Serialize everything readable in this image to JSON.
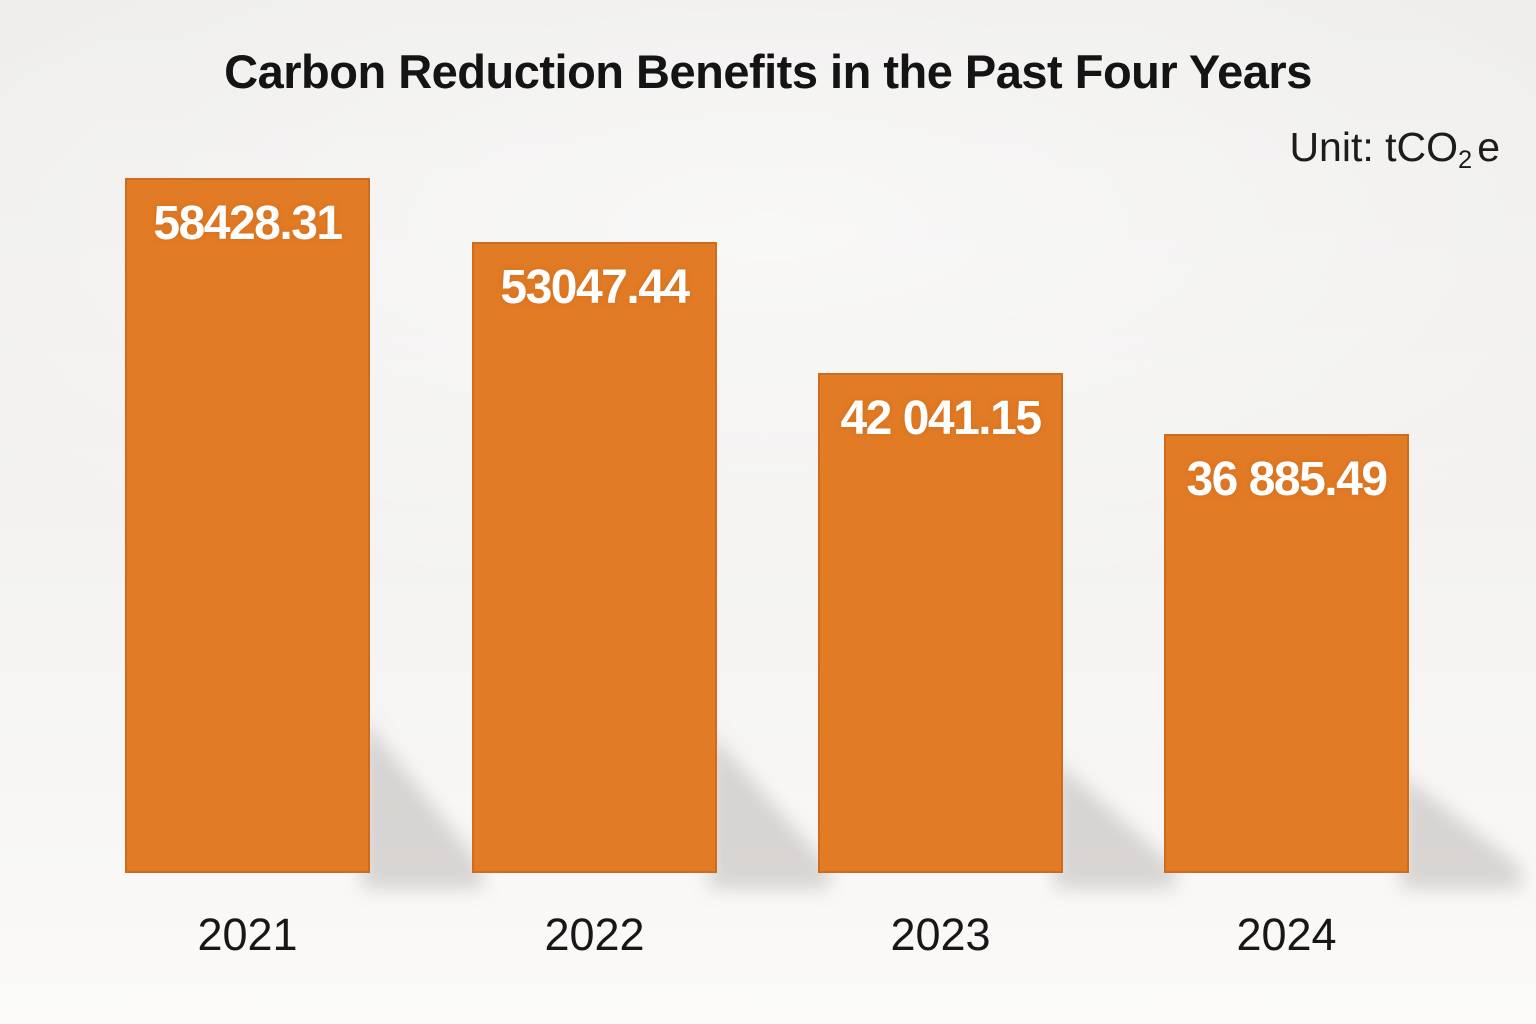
{
  "chart": {
    "title": "Carbon Reduction Benefits in the Past Four Years",
    "unit_prefix": "Unit: tCO",
    "unit_sub": "2",
    "unit_suffix": "e"
  },
  "chart_data": {
    "type": "bar",
    "title": "Carbon Reduction Benefits in the Past Four Years",
    "unit": "tCO2e",
    "categories": [
      "2021",
      "2022",
      "2023",
      "2024"
    ],
    "values": [
      58428.31,
      53047.44,
      42041.15,
      36885.49
    ],
    "value_labels": [
      "58428.31",
      "53047.44",
      "42 041.15",
      "36 885.49"
    ],
    "xlabel": "",
    "ylabel": "",
    "ylim": [
      0,
      58428.31
    ],
    "grid": false,
    "legend_position": "none",
    "bar_color": "#E27B25",
    "bar_border_color": "#C2600F",
    "value_label_color": "#FFFFFF",
    "axis_label_color": "#171717",
    "background_color": "#F3F2F0"
  }
}
